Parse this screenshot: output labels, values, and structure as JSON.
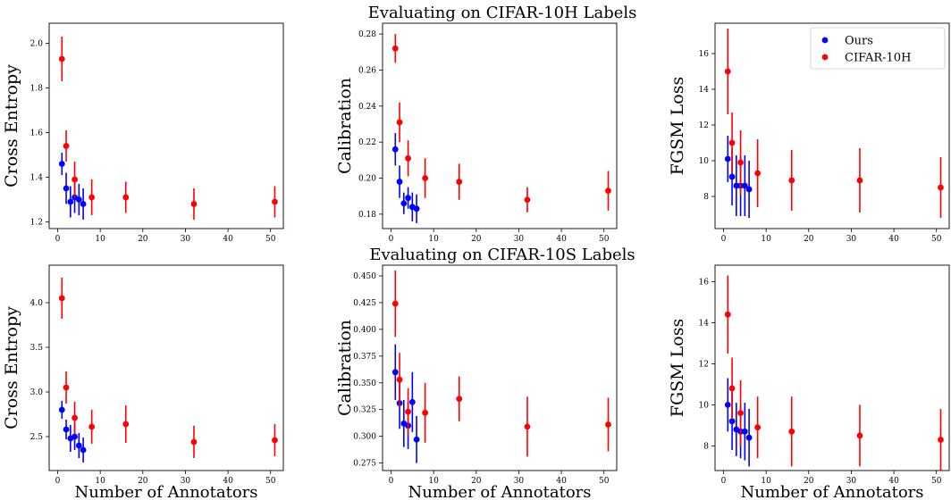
{
  "row_titles": [
    "Evaluating on CIFAR-10H Labels",
    "Evaluating on CIFAR-10S Labels"
  ],
  "colors": {
    "ours": "#0000ff",
    "cifar10h": "#ff0000",
    "axes": "#000000",
    "background": "#ffffff"
  },
  "chart_data": [
    {
      "type": "scatter",
      "row": 0,
      "col": 0,
      "title": "",
      "xlabel": "",
      "ylabel": "Cross Entropy",
      "xlim": [
        -2,
        53
      ],
      "ylim": [
        1.17,
        2.09
      ],
      "xticks": [
        0,
        10,
        20,
        30,
        40,
        50
      ],
      "yticks": [
        1.2,
        1.4,
        1.6,
        1.8,
        2.0
      ],
      "ytick_labels": [
        "1.2",
        "1.4",
        "1.6",
        "1.8",
        "2.0"
      ],
      "series": [
        {
          "name": "Ours",
          "color": "#0000ff",
          "x": [
            1,
            2,
            3,
            4,
            5,
            6
          ],
          "y": [
            1.46,
            1.35,
            1.29,
            1.31,
            1.3,
            1.28
          ],
          "err": [
            0.05,
            0.07,
            0.07,
            0.07,
            0.07,
            0.07
          ]
        },
        {
          "name": "CIFAR-10H",
          "color": "#ff0000",
          "x": [
            1,
            2,
            4,
            8,
            16,
            32,
            51
          ],
          "y": [
            1.93,
            1.54,
            1.39,
            1.31,
            1.31,
            1.28,
            1.29
          ],
          "err": [
            0.1,
            0.07,
            0.08,
            0.08,
            0.07,
            0.07,
            0.07
          ]
        }
      ]
    },
    {
      "type": "scatter",
      "row": 0,
      "col": 1,
      "title": "",
      "xlabel": "",
      "ylabel": "Calibration",
      "xlim": [
        -2,
        53
      ],
      "ylim": [
        0.172,
        0.286
      ],
      "xticks": [
        0,
        10,
        20,
        30,
        40,
        50
      ],
      "yticks": [
        0.18,
        0.2,
        0.22,
        0.24,
        0.26,
        0.28
      ],
      "ytick_labels": [
        "0.18",
        "0.20",
        "0.22",
        "0.24",
        "0.26",
        "0.28"
      ],
      "series": [
        {
          "name": "Ours",
          "color": "#0000ff",
          "x": [
            1,
            2,
            3,
            4,
            5,
            6
          ],
          "y": [
            0.216,
            0.198,
            0.186,
            0.189,
            0.184,
            0.183
          ],
          "err": [
            0.009,
            0.009,
            0.006,
            0.006,
            0.008,
            0.008
          ]
        },
        {
          "name": "CIFAR-10H",
          "color": "#ff0000",
          "x": [
            1,
            2,
            4,
            8,
            16,
            32,
            51
          ],
          "y": [
            0.272,
            0.231,
            0.211,
            0.2,
            0.198,
            0.188,
            0.193
          ],
          "err": [
            0.008,
            0.011,
            0.01,
            0.011,
            0.01,
            0.007,
            0.011
          ]
        }
      ]
    },
    {
      "type": "scatter",
      "row": 0,
      "col": 2,
      "title": "",
      "xlabel": "",
      "ylabel": "FGSM Loss",
      "xlim": [
        -2,
        53
      ],
      "ylim": [
        6.2,
        17.7
      ],
      "xticks": [
        0,
        10,
        20,
        30,
        40,
        50
      ],
      "yticks": [
        8,
        10,
        12,
        14,
        16
      ],
      "ytick_labels": [
        "8",
        "10",
        "12",
        "14",
        "16"
      ],
      "legend": {
        "position": "top-right",
        "entries": [
          "Ours",
          "CIFAR-10H"
        ]
      },
      "series": [
        {
          "name": "Ours",
          "color": "#0000ff",
          "x": [
            1,
            2,
            3,
            4,
            5,
            6
          ],
          "y": [
            10.1,
            9.1,
            8.6,
            8.6,
            8.6,
            8.4
          ],
          "err": [
            1.3,
            1.6,
            1.7,
            1.7,
            1.7,
            1.6
          ]
        },
        {
          "name": "CIFAR-10H",
          "color": "#ff0000",
          "x": [
            1,
            2,
            4,
            8,
            16,
            32,
            51
          ],
          "y": [
            15.0,
            11.0,
            9.9,
            9.3,
            8.9,
            8.9,
            8.5
          ],
          "err": [
            2.4,
            1.7,
            1.8,
            1.9,
            1.7,
            1.8,
            1.7
          ]
        }
      ]
    },
    {
      "type": "scatter",
      "row": 1,
      "col": 0,
      "title": "",
      "xlabel": "Number of Annotators",
      "ylabel": "Cross Entropy",
      "xlim": [
        -2,
        53
      ],
      "ylim": [
        2.12,
        4.42
      ],
      "xticks": [
        0,
        10,
        20,
        30,
        40,
        50
      ],
      "yticks": [
        2.5,
        3.0,
        3.5,
        4.0
      ],
      "ytick_labels": [
        "2.5",
        "3.0",
        "3.5",
        "4.0"
      ],
      "series": [
        {
          "name": "Ours",
          "color": "#0000ff",
          "x": [
            1,
            2,
            3,
            4,
            5,
            6
          ],
          "y": [
            2.8,
            2.58,
            2.48,
            2.5,
            2.4,
            2.35
          ],
          "err": [
            0.1,
            0.11,
            0.15,
            0.15,
            0.14,
            0.14
          ]
        },
        {
          "name": "CIFAR-10H",
          "color": "#ff0000",
          "x": [
            1,
            2,
            4,
            8,
            16,
            32,
            51
          ],
          "y": [
            4.05,
            3.05,
            2.71,
            2.61,
            2.64,
            2.44,
            2.46
          ],
          "err": [
            0.23,
            0.18,
            0.18,
            0.19,
            0.21,
            0.18,
            0.18
          ]
        }
      ]
    },
    {
      "type": "scatter",
      "row": 1,
      "col": 1,
      "title": "",
      "xlabel": "Number of Annotators",
      "ylabel": "Calibration",
      "xlim": [
        -2,
        53
      ],
      "ylim": [
        0.268,
        0.46
      ],
      "xticks": [
        0,
        10,
        20,
        30,
        40,
        50
      ],
      "yticks": [
        0.275,
        0.3,
        0.325,
        0.35,
        0.375,
        0.4,
        0.425,
        0.45
      ],
      "ytick_labels": [
        "0.275",
        "0.300",
        "0.325",
        "0.350",
        "0.375",
        "0.400",
        "0.425",
        "0.450"
      ],
      "series": [
        {
          "name": "Ours",
          "color": "#0000ff",
          "x": [
            1,
            2,
            3,
            4,
            5,
            6
          ],
          "y": [
            0.36,
            0.331,
            0.312,
            0.31,
            0.332,
            0.297
          ],
          "err": [
            0.026,
            0.024,
            0.022,
            0.022,
            0.028,
            0.022
          ]
        },
        {
          "name": "CIFAR-10H",
          "color": "#ff0000",
          "x": [
            1,
            2,
            4,
            8,
            16,
            32,
            51
          ],
          "y": [
            0.424,
            0.353,
            0.323,
            0.322,
            0.335,
            0.309,
            0.311
          ],
          "err": [
            0.031,
            0.025,
            0.022,
            0.028,
            0.021,
            0.028,
            0.025
          ]
        }
      ]
    },
    {
      "type": "scatter",
      "row": 1,
      "col": 2,
      "title": "",
      "xlabel": "Number of Annotators",
      "ylabel": "FGSM Loss",
      "xlim": [
        -2,
        53
      ],
      "ylim": [
        6.8,
        16.8
      ],
      "xticks": [
        0,
        10,
        20,
        30,
        40,
        50
      ],
      "yticks": [
        8,
        10,
        12,
        14,
        16
      ],
      "ytick_labels": [
        "8",
        "10",
        "12",
        "14",
        "16"
      ],
      "series": [
        {
          "name": "Ours",
          "color": "#0000ff",
          "x": [
            1,
            2,
            3,
            4,
            5,
            6
          ],
          "y": [
            10.0,
            9.2,
            8.8,
            8.7,
            8.7,
            8.4
          ],
          "err": [
            1.3,
            1.4,
            1.3,
            1.3,
            1.4,
            1.4
          ]
        },
        {
          "name": "CIFAR-10H",
          "color": "#ff0000",
          "x": [
            1,
            2,
            4,
            8,
            16,
            32,
            51
          ],
          "y": [
            14.4,
            10.8,
            9.6,
            8.9,
            8.7,
            8.5,
            8.3
          ],
          "err": [
            1.9,
            1.5,
            1.6,
            1.5,
            1.7,
            1.5,
            1.5
          ]
        }
      ]
    }
  ]
}
